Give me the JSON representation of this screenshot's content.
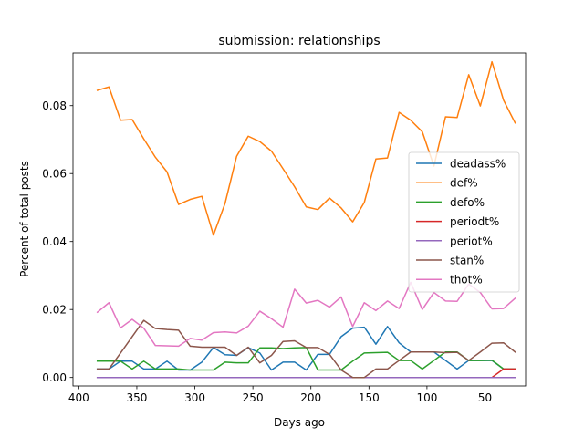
{
  "chart_data": {
    "type": "line",
    "title": "submission: relationships",
    "xlabel": "Days ago",
    "ylabel": "Percent of total posts",
    "xlim": [
      405,
      15
    ],
    "ylim": [
      -0.0025,
      0.0955
    ],
    "x_reversed": true,
    "xticks": [
      400,
      350,
      300,
      250,
      200,
      150,
      100,
      50
    ],
    "xtick_labels": [
      "400",
      "350",
      "300",
      "250",
      "200",
      "150",
      "100",
      "50"
    ],
    "yticks": [
      0.0,
      0.02,
      0.04,
      0.06,
      0.08
    ],
    "ytick_labels": [
      "0.00",
      "0.02",
      "0.04",
      "0.06",
      "0.08"
    ],
    "legend_position": "center-right",
    "grid": false,
    "x": [
      384,
      374,
      364,
      354,
      344,
      334,
      324,
      314,
      304,
      294,
      284,
      274,
      264,
      254,
      244,
      234,
      224,
      214,
      204,
      194,
      184,
      174,
      164,
      154,
      144,
      134,
      124,
      114,
      104,
      94,
      84,
      74,
      64,
      54,
      44,
      34,
      24
    ],
    "series": [
      {
        "name": "deadass%",
        "color": "#1f77b4",
        "values": [
          0.0025,
          0.0025,
          0.0048,
          0.0048,
          0.0025,
          0.0025,
          0.0048,
          0.0022,
          0.0022,
          0.0045,
          0.0088,
          0.0067,
          0.0065,
          0.0088,
          0.0072,
          0.0022,
          0.0045,
          0.0045,
          0.0022,
          0.0068,
          0.0068,
          0.012,
          0.0145,
          0.0148,
          0.0098,
          0.015,
          0.0102,
          0.0075,
          0.0075,
          0.0075,
          0.005,
          0.0025,
          0.005,
          0.005,
          0.005,
          0.0025,
          0.0025
        ]
      },
      {
        "name": "def%",
        "color": "#ff7f0e",
        "values": [
          0.0845,
          0.0855,
          0.0757,
          0.0759,
          0.0702,
          0.0648,
          0.0605,
          0.0509,
          0.0524,
          0.0533,
          0.0419,
          0.0512,
          0.0651,
          0.071,
          0.0694,
          0.0666,
          0.0614,
          0.0561,
          0.0502,
          0.0494,
          0.0528,
          0.0499,
          0.0458,
          0.0515,
          0.0643,
          0.0646,
          0.078,
          0.0757,
          0.0723,
          0.0622,
          0.0767,
          0.0765,
          0.0891,
          0.0799,
          0.0929,
          0.0816,
          0.0749
        ]
      },
      {
        "name": "defo%",
        "color": "#2ca02c",
        "values": [
          0.0048,
          0.0048,
          0.0048,
          0.0025,
          0.0048,
          0.0025,
          0.0025,
          0.0025,
          0.0022,
          0.0022,
          0.0022,
          0.0045,
          0.0043,
          0.0043,
          0.0087,
          0.0087,
          0.0085,
          0.0087,
          0.0088,
          0.0022,
          0.0022,
          0.0022,
          0.0048,
          0.0072,
          0.0073,
          0.0074,
          0.005,
          0.005,
          0.0025,
          0.005,
          0.0075,
          0.0075,
          0.005,
          0.005,
          0.0051,
          0.0025,
          0.0025
        ]
      },
      {
        "name": "periodt%",
        "color": "#d62728",
        "values": [
          0,
          0,
          0,
          0,
          0,
          0,
          0,
          0,
          0,
          0,
          0,
          0,
          0,
          0,
          0,
          0,
          0,
          0,
          0,
          0,
          0,
          0,
          0,
          0,
          0,
          0,
          0,
          0,
          0,
          0,
          0,
          0,
          0,
          0,
          0,
          0.0025,
          0.0025
        ]
      },
      {
        "name": "periot%",
        "color": "#9467bd",
        "values": [
          0,
          0,
          0,
          0,
          0,
          0,
          0,
          0,
          0,
          0,
          0,
          0,
          0,
          0,
          0,
          0,
          0,
          0,
          0,
          0,
          0,
          0,
          0,
          0,
          0,
          0,
          0,
          0,
          0,
          0,
          0,
          0,
          0,
          0,
          0,
          0,
          0
        ]
      },
      {
        "name": "stan%",
        "color": "#8c564b",
        "values": [
          0.0025,
          0.0025,
          0.0072,
          0.012,
          0.0168,
          0.0144,
          0.0141,
          0.0139,
          0.0092,
          0.0089,
          0.0089,
          0.0089,
          0.0065,
          0.0089,
          0.0043,
          0.0065,
          0.0106,
          0.0108,
          0.0088,
          0.0088,
          0.0068,
          0.0022,
          0,
          0,
          0.0025,
          0.0025,
          0.005,
          0.0075,
          0.0075,
          0.0075,
          0.0073,
          0.0074,
          0.005,
          0.0075,
          0.0101,
          0.0102,
          0.0075
        ]
      },
      {
        "name": "thot%",
        "color": "#e377c2",
        "values": [
          0.0192,
          0.022,
          0.0146,
          0.0171,
          0.0145,
          0.0094,
          0.0093,
          0.0092,
          0.0115,
          0.011,
          0.0132,
          0.0134,
          0.0131,
          0.0151,
          0.0195,
          0.0173,
          0.0148,
          0.026,
          0.0219,
          0.0227,
          0.0207,
          0.0237,
          0.015,
          0.022,
          0.0197,
          0.0225,
          0.0203,
          0.028,
          0.02,
          0.025,
          0.0225,
          0.0224,
          0.0275,
          0.025,
          0.0202,
          0.0203,
          0.0233
        ]
      }
    ]
  }
}
